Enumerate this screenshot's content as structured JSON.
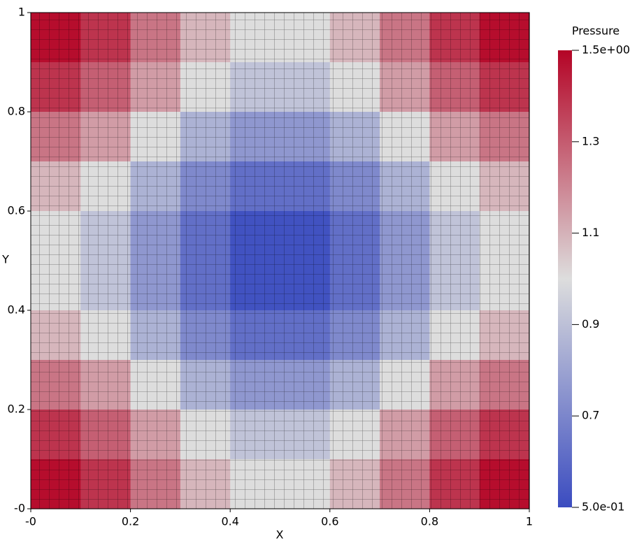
{
  "chart_data": {
    "type": "heatmap",
    "x_label": "X",
    "y_label": "Y",
    "xlim": [
      0,
      1
    ],
    "ylim": [
      0,
      1
    ],
    "xticks": [
      {
        "value": 0,
        "label": "-0"
      },
      0.2,
      0.4,
      0.6,
      0.8,
      1
    ],
    "yticks": [
      {
        "value": 0,
        "label": "-0"
      },
      0.2,
      0.4,
      0.6,
      0.8,
      1
    ],
    "values": [
      [
        1.48,
        1.39,
        1.24,
        1.09,
        1.0,
        1.0,
        1.09,
        1.24,
        1.39,
        1.48
      ],
      [
        1.39,
        1.29,
        1.15,
        1.0,
        0.91,
        0.91,
        1.0,
        1.15,
        1.29,
        1.39
      ],
      [
        1.24,
        1.15,
        1.0,
        0.85,
        0.76,
        0.76,
        0.85,
        1.0,
        1.15,
        1.24
      ],
      [
        1.09,
        1.0,
        0.85,
        0.71,
        0.62,
        0.62,
        0.71,
        0.85,
        1.0,
        1.09
      ],
      [
        1.0,
        0.91,
        0.76,
        0.62,
        0.52,
        0.52,
        0.62,
        0.76,
        0.91,
        1.0
      ],
      [
        1.0,
        0.91,
        0.76,
        0.62,
        0.52,
        0.52,
        0.62,
        0.76,
        0.91,
        1.0
      ],
      [
        1.09,
        1.0,
        0.85,
        0.71,
        0.62,
        0.62,
        0.71,
        0.85,
        1.0,
        1.09
      ],
      [
        1.24,
        1.15,
        1.0,
        0.85,
        0.76,
        0.76,
        0.85,
        1.0,
        1.15,
        1.24
      ],
      [
        1.39,
        1.29,
        1.15,
        1.0,
        0.91,
        0.91,
        1.0,
        1.15,
        1.29,
        1.39
      ],
      [
        1.48,
        1.39,
        1.24,
        1.09,
        1.0,
        1.0,
        1.09,
        1.24,
        1.39,
        1.48
      ]
    ],
    "colorbar_title": "Pressure",
    "clim": [
      0.5,
      1.5
    ],
    "cticks": [
      {
        "value": 0.5,
        "label": "5.0e-01"
      },
      0.7,
      0.9,
      1.1,
      1.3,
      {
        "value": 1.5,
        "label": "1.5e+00"
      }
    ],
    "colormap": [
      "#3b4cc0",
      "#dddddd",
      "#b40426"
    ]
  }
}
